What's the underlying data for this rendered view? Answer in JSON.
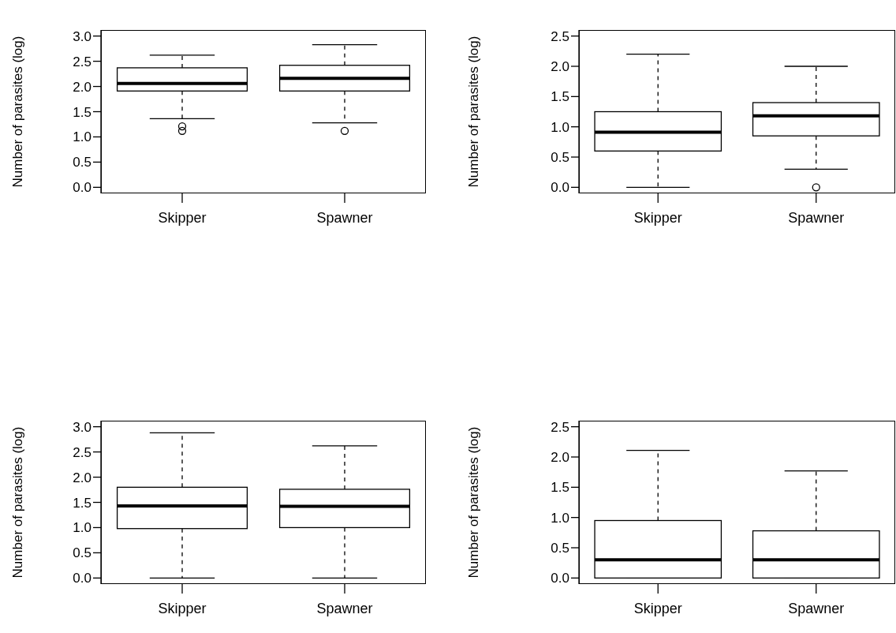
{
  "chart_data": [
    {
      "type": "box",
      "ylabel": "Number of parasites (log)",
      "categories": [
        "Skipper",
        "Spawner"
      ],
      "ylim": [
        -0.12,
        3.12
      ],
      "yticks": [
        {
          "value": 0,
          "label": "0.0"
        },
        {
          "value": 0.5,
          "label": "0.5"
        },
        {
          "value": 1,
          "label": "1.0"
        },
        {
          "value": 1.5,
          "label": "1.5"
        },
        {
          "value": 2,
          "label": "2.0"
        },
        {
          "value": 2.5,
          "label": "2.5"
        },
        {
          "value": 3,
          "label": "3.0"
        }
      ],
      "boxes": [
        {
          "low": 1.36,
          "q1": 1.91,
          "median": 2.06,
          "q3": 2.37,
          "high": 2.62,
          "outliers": [
            1.21,
            1.12
          ]
        },
        {
          "low": 1.28,
          "q1": 1.91,
          "median": 2.16,
          "q3": 2.42,
          "high": 2.83,
          "outliers": [
            1.12
          ]
        }
      ]
    },
    {
      "type": "box",
      "ylabel": "Number of parasites (log)",
      "categories": [
        "Skipper",
        "Spawner"
      ],
      "ylim": [
        -0.1,
        2.6
      ],
      "yticks": [
        {
          "value": 0,
          "label": "0.0"
        },
        {
          "value": 0.5,
          "label": "0.5"
        },
        {
          "value": 1,
          "label": "1.0"
        },
        {
          "value": 1.5,
          "label": "1.5"
        },
        {
          "value": 2,
          "label": "2.0"
        },
        {
          "value": 2.5,
          "label": "2.5"
        }
      ],
      "boxes": [
        {
          "low": 0,
          "q1": 0.6,
          "median": 0.91,
          "q3": 1.25,
          "high": 2.2
        },
        {
          "low": 0.3,
          "q1": 0.85,
          "median": 1.18,
          "q3": 1.4,
          "high": 2.0,
          "outliers": [
            0
          ]
        }
      ]
    },
    {
      "type": "box",
      "ylabel": "Number of parasites (log)",
      "categories": [
        "Skipper",
        "Spawner"
      ],
      "ylim": [
        -0.12,
        3.12
      ],
      "yticks": [
        {
          "value": 0,
          "label": "0.0"
        },
        {
          "value": 0.5,
          "label": "0.5"
        },
        {
          "value": 1,
          "label": "1.0"
        },
        {
          "value": 1.5,
          "label": "1.5"
        },
        {
          "value": 2,
          "label": "2.0"
        },
        {
          "value": 2.5,
          "label": "2.5"
        },
        {
          "value": 3,
          "label": "3.0"
        }
      ],
      "boxes": [
        {
          "low": 0,
          "q1": 0.98,
          "median": 1.43,
          "q3": 1.8,
          "high": 2.88
        },
        {
          "low": 0,
          "q1": 1.0,
          "median": 1.42,
          "q3": 1.76,
          "high": 2.62
        }
      ]
    },
    {
      "type": "box",
      "ylabel": "Number of parasites (log)",
      "categories": [
        "Skipper",
        "Spawner"
      ],
      "ylim": [
        -0.1,
        2.6
      ],
      "yticks": [
        {
          "value": 0,
          "label": "0.0"
        },
        {
          "value": 0.5,
          "label": "0.5"
        },
        {
          "value": 1,
          "label": "1.0"
        },
        {
          "value": 1.5,
          "label": "1.5"
        },
        {
          "value": 2,
          "label": "2.0"
        },
        {
          "value": 2.5,
          "label": "2.5"
        }
      ],
      "boxes": [
        {
          "low": 0,
          "q1": 0,
          "median": 0.3,
          "q3": 0.95,
          "high": 2.11
        },
        {
          "low": 0,
          "q1": 0,
          "median": 0.3,
          "q3": 0.78,
          "high": 1.77
        }
      ]
    }
  ]
}
